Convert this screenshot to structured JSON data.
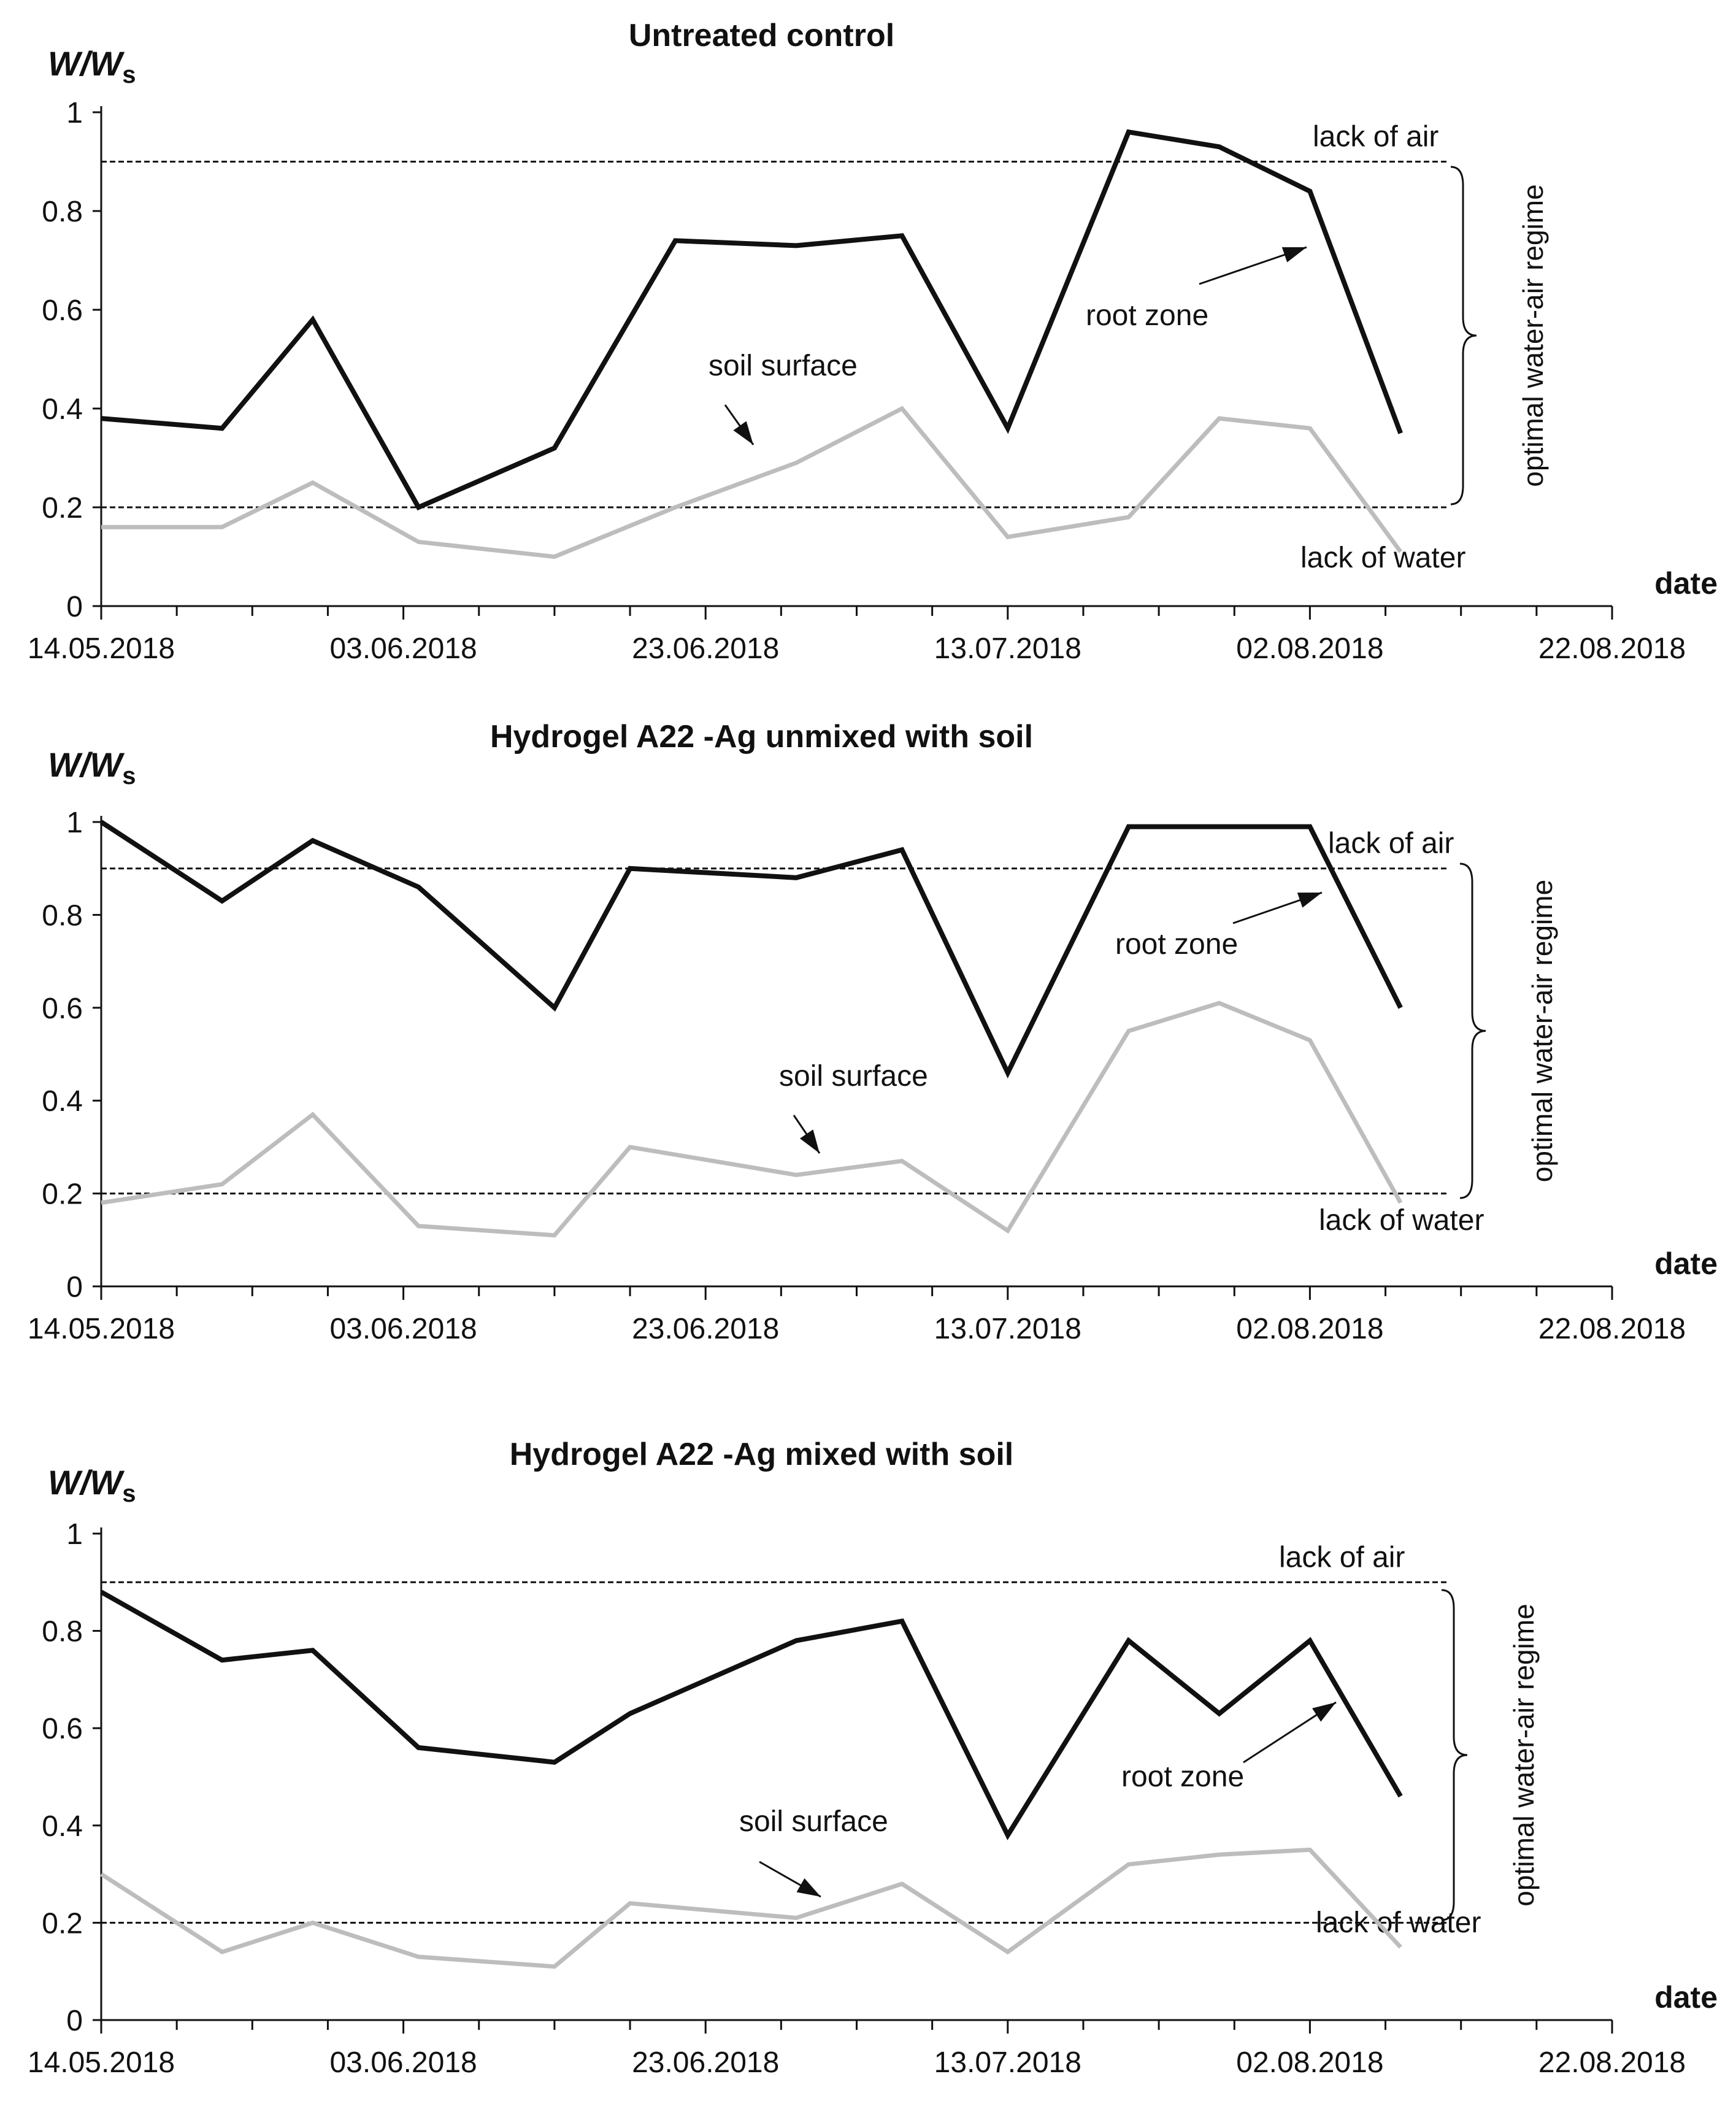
{
  "chart_data": [
    {
      "type": "line",
      "title": "Untreated  control",
      "ylabel_main": "W/W",
      "ylabel_sub": "s",
      "xlabel": "date",
      "ylim": [
        0,
        1
      ],
      "yticks": [
        "0",
        "0.2",
        "0.4",
        "0.6",
        "0.8",
        "1"
      ],
      "xlim": [
        "14.05.2018",
        "22.08.2018"
      ],
      "xtick_labels": [
        "14.05.2018",
        "03.06.2018",
        "23.06.2018",
        "13.07.2018",
        "02.08.2018",
        "22.08.2018"
      ],
      "x": [
        "14.05.2018",
        "22.05.2018",
        "28.05.2018",
        "04.06.2018",
        "13.06.2018",
        "21.06.2018",
        "29.06.2018",
        "06.07.2018",
        "13.07.2018",
        "21.07.2018",
        "27.07.2018",
        "02.08.2018",
        "08.08.2018"
      ],
      "series": [
        {
          "name": "root zone",
          "color": "#111111",
          "values": [
            0.38,
            0.36,
            0.58,
            0.2,
            0.32,
            0.74,
            0.73,
            0.75,
            0.36,
            0.96,
            0.93,
            0.84,
            0.35
          ]
        },
        {
          "name": "soil surface",
          "color": "#bdbdbd",
          "values": [
            0.16,
            0.16,
            0.25,
            0.13,
            0.1,
            0.2,
            0.29,
            0.4,
            0.14,
            0.18,
            0.38,
            0.36,
            0.11
          ]
        }
      ],
      "reference_lines": [
        {
          "label": "lack of air",
          "y": 0.9
        },
        {
          "label": "lack of water",
          "y": 0.2
        }
      ],
      "regime_label": "optimal water-air regime"
    },
    {
      "type": "line",
      "title": "Hydrogel A22  -Ag unmixed with soil",
      "ylabel_main": "W/W",
      "ylabel_sub": "s",
      "xlabel": "date",
      "ylim": [
        0,
        1
      ],
      "yticks": [
        "0",
        "0.2",
        "0.4",
        "0.6",
        "0.8",
        "1"
      ],
      "xlim": [
        "14.05.2018",
        "22.08.2018"
      ],
      "xtick_labels": [
        "14.05.2018",
        "03.06.2018",
        "23.06.2018",
        "13.07.2018",
        "02.08.2018",
        "22.08.2018"
      ],
      "x": [
        "14.05.2018",
        "22.05.2018",
        "28.05.2018",
        "04.06.2018",
        "13.06.2018",
        "18.06.2018",
        "29.06.2018",
        "06.07.2018",
        "13.07.2018",
        "21.07.2018",
        "27.07.2018",
        "02.08.2018",
        "08.08.2018"
      ],
      "series": [
        {
          "name": "root zone",
          "color": "#111111",
          "values": [
            1.0,
            0.83,
            0.96,
            0.86,
            0.6,
            0.9,
            0.88,
            0.94,
            0.46,
            0.99,
            0.99,
            0.99,
            0.6
          ]
        },
        {
          "name": "soil surface",
          "color": "#bdbdbd",
          "values": [
            0.18,
            0.22,
            0.37,
            0.13,
            0.11,
            0.3,
            0.24,
            0.27,
            0.12,
            0.55,
            0.61,
            0.53,
            0.18
          ]
        }
      ],
      "reference_lines": [
        {
          "label": "lack of air",
          "y": 0.9
        },
        {
          "label": "lack of water",
          "y": 0.2
        }
      ],
      "regime_label": "optimal water-air regime"
    },
    {
      "type": "line",
      "title": "Hydrogel A22  -Ag mixed with soil",
      "ylabel_main": "W/W",
      "ylabel_sub": "s",
      "xlabel": "date",
      "ylim": [
        0,
        1
      ],
      "yticks": [
        "0",
        "0.2",
        "0.4",
        "0.6",
        "0.8",
        "1"
      ],
      "xlim": [
        "14.05.2018",
        "22.08.2018"
      ],
      "xtick_labels": [
        "14.05.2018",
        "03.06.2018",
        "23.06.2018",
        "13.07.2018",
        "02.08.2018",
        "22.08.2018"
      ],
      "x": [
        "14.05.2018",
        "22.05.2018",
        "28.05.2018",
        "04.06.2018",
        "13.06.2018",
        "18.06.2018",
        "29.06.2018",
        "06.07.2018",
        "13.07.2018",
        "21.07.2018",
        "27.07.2018",
        "02.08.2018",
        "08.08.2018"
      ],
      "series": [
        {
          "name": "root zone",
          "color": "#111111",
          "values": [
            0.88,
            0.74,
            0.76,
            0.56,
            0.53,
            0.63,
            0.78,
            0.82,
            0.38,
            0.78,
            0.63,
            0.78,
            0.46
          ]
        },
        {
          "name": "soil surface",
          "color": "#bdbdbd",
          "values": [
            0.3,
            0.14,
            0.2,
            0.13,
            0.11,
            0.24,
            0.21,
            0.28,
            0.14,
            0.32,
            0.34,
            0.35,
            0.15
          ]
        }
      ],
      "reference_lines": [
        {
          "label": "lack of air",
          "y": 0.9
        },
        {
          "label": "lack of water",
          "y": 0.2
        }
      ],
      "regime_label": "optimal water-air regime"
    }
  ]
}
